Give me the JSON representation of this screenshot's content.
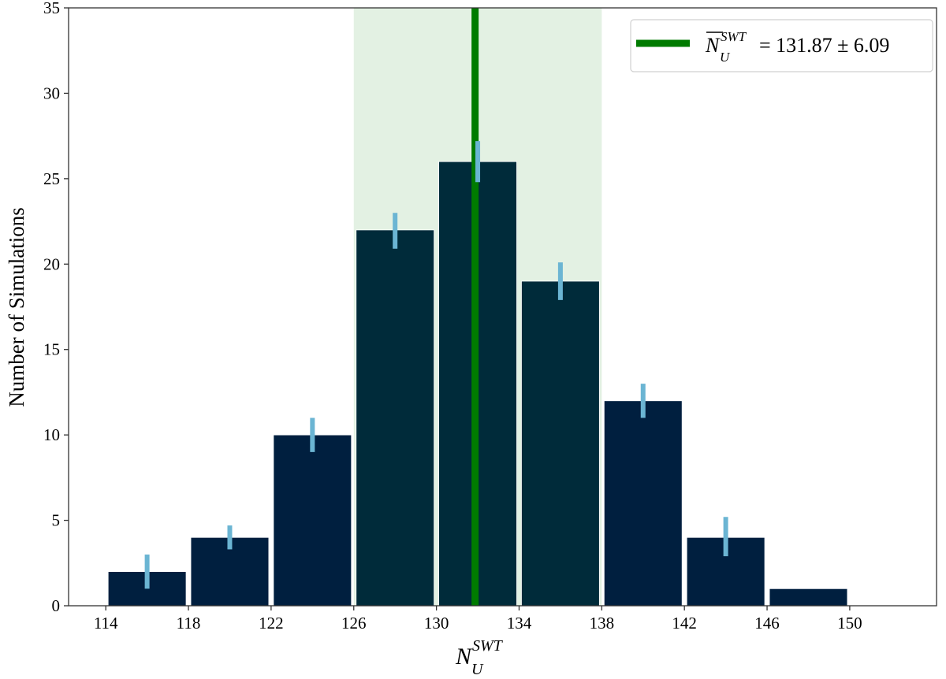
{
  "chart_data": {
    "type": "bar",
    "title": "",
    "xlabel": "N_U^{SWT}",
    "ylabel": "Number of Simulations",
    "bin_edges": [
      114,
      118,
      122,
      126,
      130,
      134,
      138,
      142,
      146,
      150
    ],
    "categories": [
      "114-118",
      "118-122",
      "122-126",
      "126-130",
      "130-134",
      "134-138",
      "138-142",
      "142-146",
      "146-150"
    ],
    "values": [
      2,
      4,
      10,
      22,
      26,
      19,
      12,
      4,
      1
    ],
    "error_bars": [
      {
        "low": 1.0,
        "high": 3.0
      },
      {
        "low": 3.3,
        "high": 4.7
      },
      {
        "low": 9.0,
        "high": 11.0
      },
      {
        "low": 20.9,
        "high": 23.0
      },
      {
        "low": 24.8,
        "high": 27.2
      },
      {
        "low": 17.9,
        "high": 20.1
      },
      {
        "low": 11.0,
        "high": 13.0
      },
      {
        "low": 2.9,
        "high": 5.2
      },
      null
    ],
    "xlim": [
      112.2,
      154.2
    ],
    "ylim": [
      0,
      35
    ],
    "x_ticks": [
      114,
      118,
      122,
      126,
      130,
      134,
      138,
      142,
      146,
      150
    ],
    "y_ticks": [
      0,
      5,
      10,
      15,
      20,
      25,
      30,
      35
    ],
    "mean_line": {
      "x": 131.87,
      "std": 6.09,
      "color": "#007b00"
    },
    "shaded_band": {
      "x0": 126.0,
      "x1": 138.0,
      "color": "#e3f1e3"
    },
    "legend": {
      "position": "upper right",
      "entries": [
        {
          "label": "N̄_U^{SWT} = 131.87 ± 6.09",
          "color": "#007b00"
        }
      ]
    },
    "grid": false,
    "colors": {
      "bar": "#001f3f",
      "bar_in_band": "#002b3a",
      "error": "#6bb5d3",
      "axis": "#333333"
    }
  },
  "legend": {
    "symbol": "N",
    "sub": "U",
    "sup": "SWT",
    "rhs": "= 131.87 ± 6.09"
  },
  "axes": {
    "y_title": "Number of Simulations",
    "x_symbol": "N",
    "x_sub": "U",
    "x_sup": "SWT"
  }
}
